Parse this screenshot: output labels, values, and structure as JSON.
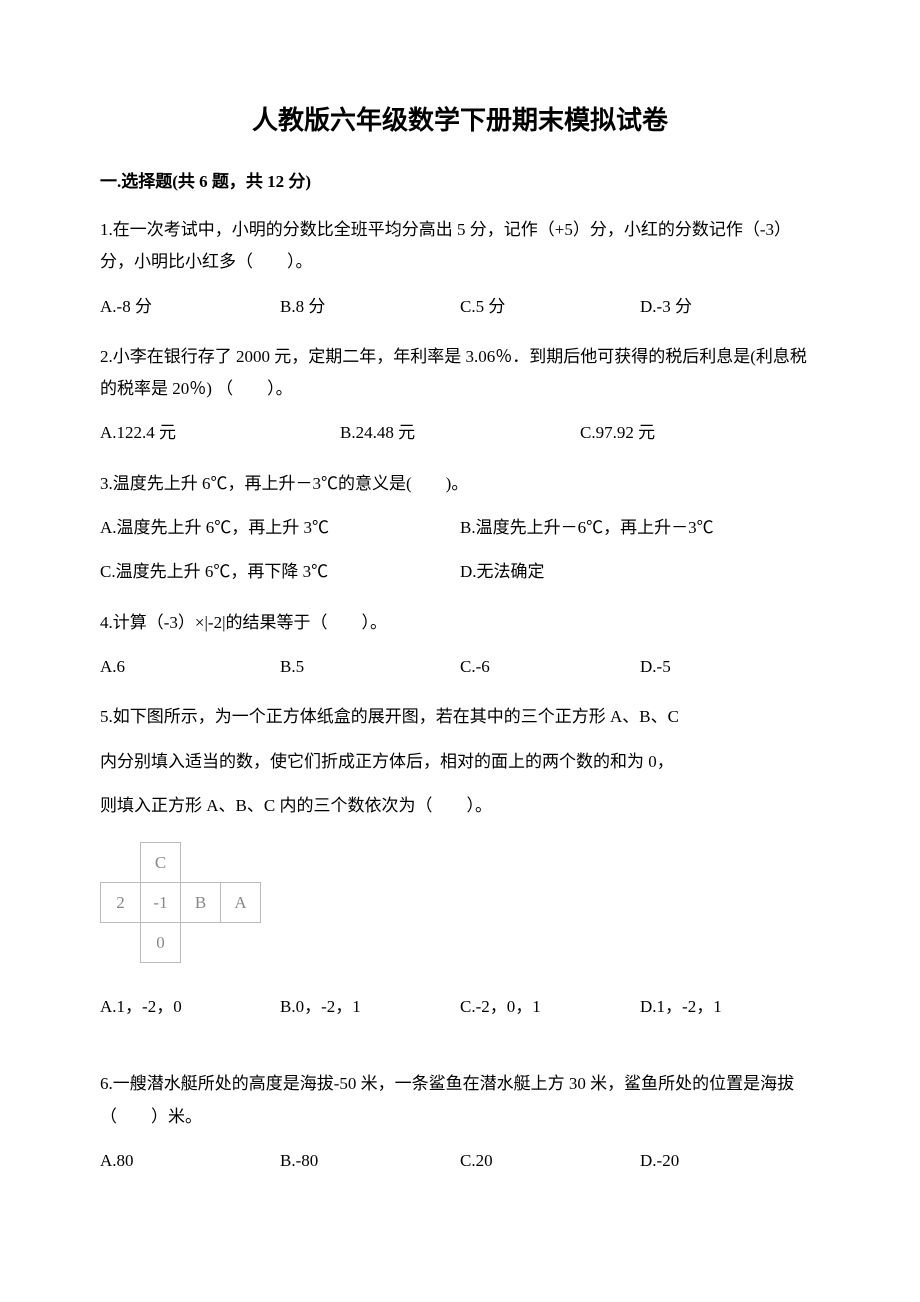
{
  "title": "人教版六年级数学下册期末模拟试卷",
  "section1": {
    "header": "一.选择题(共 6 题，共 12 分)"
  },
  "q1": {
    "text": "1.在一次考试中，小明的分数比全班平均分高出 5 分，记作（+5）分，小红的分数记作（-3）分，小明比小红多（　　）。",
    "a": "A.-8 分",
    "b": "B.8 分",
    "c": "C.5 分",
    "d": "D.-3 分"
  },
  "q2": {
    "text": "2.小李在银行存了 2000 元，定期二年，年利率是 3.06％．到期后他可获得的税后利息是(利息税的税率是 20％) （　　）。",
    "a": "A.122.4 元",
    "b": "B.24.48 元",
    "c": "C.97.92 元"
  },
  "q3": {
    "text": "3.温度先上升 6℃，再上升－3℃的意义是(　　)。",
    "a": "A.温度先上升 6℃，再上升 3℃",
    "b": "B.温度先上升－6℃，再上升－3℃",
    "c": "C.温度先上升 6℃，再下降 3℃",
    "d": "D.无法确定"
  },
  "q4": {
    "text": "4.计算（-3）×|-2|的结果等于（　　）。",
    "a": "A.6",
    "b": "B.5",
    "c": "C.-6",
    "d": "D.-5"
  },
  "q5": {
    "l1": "5.如下图所示，为一个正方体纸盒的展开图，若在其中的三个正方形 A、B、C",
    "l2": "内分别填入适当的数，使它们折成正方体后，相对的面上的两个数的和为 0，",
    "l3": "则填入正方形 A、B、C 内的三个数依次为（　　）。",
    "net": {
      "c": "C",
      "two": "2",
      "neg1": "-1",
      "b": "B",
      "a": "A",
      "zero": "0"
    },
    "a": "A.1，-2，0",
    "b": "B.0，-2，1",
    "c2": "C.-2，0，1",
    "d": "D.1，-2，1"
  },
  "q6": {
    "text": "6.一艘潜水艇所处的高度是海拔-50 米，一条鲨鱼在潜水艇上方 30 米，鲨鱼所处的位置是海拔（　　）米。",
    "a": "A.80",
    "b": "B.-80",
    "c": "C.20",
    "d": "D.-20"
  }
}
